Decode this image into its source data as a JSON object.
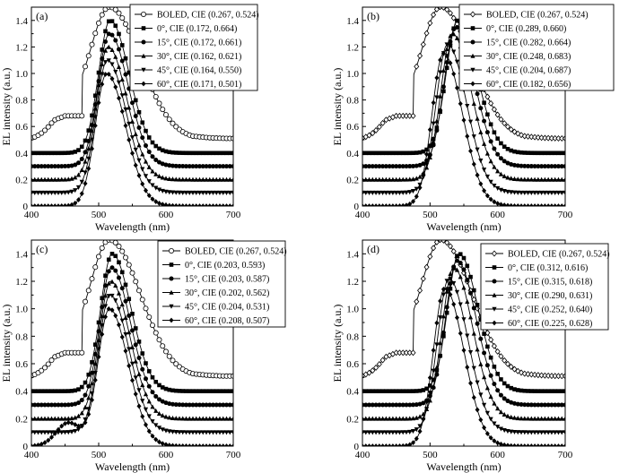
{
  "chart_data": [
    {
      "type": "line",
      "panel_label": "(a)",
      "xlabel": "Wavelength (nm)",
      "ylabel": "EL intensity (a.u.)",
      "xlim": [
        400,
        700
      ],
      "ylim": [
        0,
        1.5
      ],
      "xticks": [
        400,
        500,
        600,
        700
      ],
      "yticks": [
        0,
        0.2,
        0.4,
        0.6,
        0.8,
        1.0,
        1.2,
        1.4
      ],
      "ytick_labels": [
        "0",
        "0.2",
        "0.4",
        "0.6",
        "0.8",
        "1.0",
        "1.2",
        "1.4"
      ],
      "grid": false,
      "legend_position": "top-right",
      "series": [
        {
          "name": "BOLED, CIE (0.267, 0.524)",
          "marker": "open-circle",
          "baseline": 0.5,
          "peak_x": 516,
          "peak_y": 1.5,
          "shoulder_x": 450,
          "shoulder_y": 0.68,
          "tail_y": 0.51
        },
        {
          "name": "0°, CIE (0.172, 0.664)",
          "marker": "square",
          "baseline": 0.4,
          "peak_x": 517,
          "peak_y": 1.4,
          "tail_y": 0.4
        },
        {
          "name": "15°, CIE (0.172, 0.661)",
          "marker": "circle",
          "baseline": 0.3,
          "peak_x": 516,
          "peak_y": 1.3,
          "tail_y": 0.3
        },
        {
          "name": "30°, CIE (0.162, 0.621)",
          "marker": "triangle-up",
          "baseline": 0.2,
          "peak_x": 514,
          "peak_y": 1.2,
          "tail_y": 0.2
        },
        {
          "name": "45°, CIE (0.164, 0.550)",
          "marker": "triangle-down",
          "baseline": 0.1,
          "peak_x": 513,
          "peak_y": 1.1,
          "tail_y": 0.1
        },
        {
          "name": "60°, CIE (0.171, 0.501)",
          "marker": "diamond",
          "baseline": 0.0,
          "peak_x": 512,
          "peak_y": 1.0,
          "tail_y": 0.0
        }
      ]
    },
    {
      "type": "line",
      "panel_label": "(b)",
      "xlabel": "Wavelength (nm)",
      "ylabel": "EL intensity (a.u.)",
      "xlim": [
        400,
        700
      ],
      "ylim": [
        0,
        1.5
      ],
      "xticks": [
        400,
        500,
        600,
        700
      ],
      "yticks": [
        0,
        0.2,
        0.4,
        0.6,
        0.8,
        1.0,
        1.2,
        1.4
      ],
      "ytick_labels": [
        "0",
        "0.2",
        "0.4",
        "0.6",
        "0.8",
        "1.0",
        "1.2",
        "1.4"
      ],
      "grid": false,
      "legend_position": "top-right",
      "series": [
        {
          "name": "BOLED, CIE (0.267, 0.524)",
          "marker": "open-diamond",
          "baseline": 0.5,
          "peak_x": 516,
          "peak_y": 1.5,
          "shoulder_x": 450,
          "shoulder_y": 0.68,
          "tail_y": 0.51
        },
        {
          "name": "0°, CIE (0.289, 0.660)",
          "marker": "square",
          "baseline": 0.4,
          "peak_x": 541,
          "peak_y": 1.4,
          "tail_y": 0.4
        },
        {
          "name": "15°, CIE (0.282, 0.664)",
          "marker": "circle",
          "baseline": 0.3,
          "peak_x": 538,
          "peak_y": 1.35,
          "tail_y": 0.3
        },
        {
          "name": "30°, CIE (0.248, 0.683)",
          "marker": "triangle-up",
          "baseline": 0.2,
          "peak_x": 533,
          "peak_y": 1.3,
          "tail_y": 0.2
        },
        {
          "name": "45°, CIE (0.204, 0.687)",
          "marker": "triangle-down",
          "baseline": 0.1,
          "peak_x": 526,
          "peak_y": 1.22,
          "tail_y": 0.1
        },
        {
          "name": "60°, CIE (0.182, 0.656)",
          "marker": "diamond",
          "baseline": 0.0,
          "peak_x": 520,
          "peak_y": 1.15,
          "tail_y": 0.0
        }
      ]
    },
    {
      "type": "line",
      "panel_label": "(c)",
      "xlabel": "Wavelength (nm)",
      "ylabel": "EL intensity (a.u.)",
      "xlim": [
        400,
        700
      ],
      "ylim": [
        0,
        1.5
      ],
      "xticks": [
        400,
        500,
        600,
        700
      ],
      "yticks": [
        0,
        0.2,
        0.4,
        0.6,
        0.8,
        1.0,
        1.2,
        1.4
      ],
      "ytick_labels": [
        "0",
        "0.2",
        "0.4",
        "0.6",
        "0.8",
        "1.0",
        "1.2",
        "1.4"
      ],
      "grid": false,
      "legend_position": "top-right",
      "series": [
        {
          "name": "BOLED, CIE (0.267, 0.524)",
          "marker": "open-circle",
          "baseline": 0.5,
          "peak_x": 516,
          "peak_y": 1.5,
          "shoulder_x": 450,
          "shoulder_y": 0.68,
          "tail_y": 0.51
        },
        {
          "name": "0°, CIE (0.203, 0.593)",
          "marker": "square",
          "baseline": 0.4,
          "peak_x": 520,
          "peak_y": 1.4,
          "tail_y": 0.4
        },
        {
          "name": "15°, CIE (0.203, 0.587)",
          "marker": "circle",
          "baseline": 0.3,
          "peak_x": 519,
          "peak_y": 1.3,
          "tail_y": 0.3
        },
        {
          "name": "30°, CIE (0.202, 0.562)",
          "marker": "triangle-up",
          "baseline": 0.2,
          "peak_x": 518,
          "peak_y": 1.2,
          "tail_y": 0.2
        },
        {
          "name": "45°, CIE (0.204, 0.531)",
          "marker": "triangle-down",
          "baseline": 0.1,
          "peak_x": 517,
          "peak_y": 1.1,
          "tail_y": 0.1
        },
        {
          "name": "60°, CIE (0.208, 0.507)",
          "marker": "diamond",
          "baseline": 0.0,
          "peak_x": 516,
          "peak_y": 1.0,
          "shoulder_x": 455,
          "shoulder_y": 0.2,
          "tail_y": 0.0
        }
      ]
    },
    {
      "type": "line",
      "panel_label": "(d)",
      "xlabel": "Wavelength (nm)",
      "ylabel": "EL intensity (a.u.)",
      "xlim": [
        400,
        700
      ],
      "ylim": [
        0,
        1.5
      ],
      "xticks": [
        400,
        500,
        600,
        700
      ],
      "yticks": [
        0,
        0.2,
        0.4,
        0.6,
        0.8,
        1.0,
        1.2,
        1.4
      ],
      "ytick_labels": [
        "0",
        "0.2",
        "0.4",
        "0.6",
        "0.8",
        "1.0",
        "1.2",
        "1.4"
      ],
      "grid": false,
      "legend_position": "top-right",
      "series": [
        {
          "name": "BOLED, CIE (0.267, 0.524)",
          "marker": "open-diamond",
          "baseline": 0.5,
          "peak_x": 516,
          "peak_y": 1.5,
          "shoulder_x": 450,
          "shoulder_y": 0.68,
          "tail_y": 0.51
        },
        {
          "name": "0°, CIE (0.312, 0.616)",
          "marker": "square",
          "baseline": 0.4,
          "peak_x": 543,
          "peak_y": 1.4,
          "tail_y": 0.4
        },
        {
          "name": "15°, CIE (0.315, 0.618)",
          "marker": "circle",
          "baseline": 0.3,
          "peak_x": 540,
          "peak_y": 1.35,
          "tail_y": 0.3
        },
        {
          "name": "30°, CIE (0.290, 0.631)",
          "marker": "triangle-up",
          "baseline": 0.2,
          "peak_x": 535,
          "peak_y": 1.3,
          "tail_y": 0.2
        },
        {
          "name": "45°, CIE (0.252, 0.640)",
          "marker": "triangle-down",
          "baseline": 0.1,
          "peak_x": 528,
          "peak_y": 1.22,
          "tail_y": 0.1
        },
        {
          "name": "60°, CIE (0.225, 0.628)",
          "marker": "diamond",
          "baseline": 0.0,
          "peak_x": 522,
          "peak_y": 1.15,
          "tail_y": 0.0
        }
      ]
    }
  ]
}
